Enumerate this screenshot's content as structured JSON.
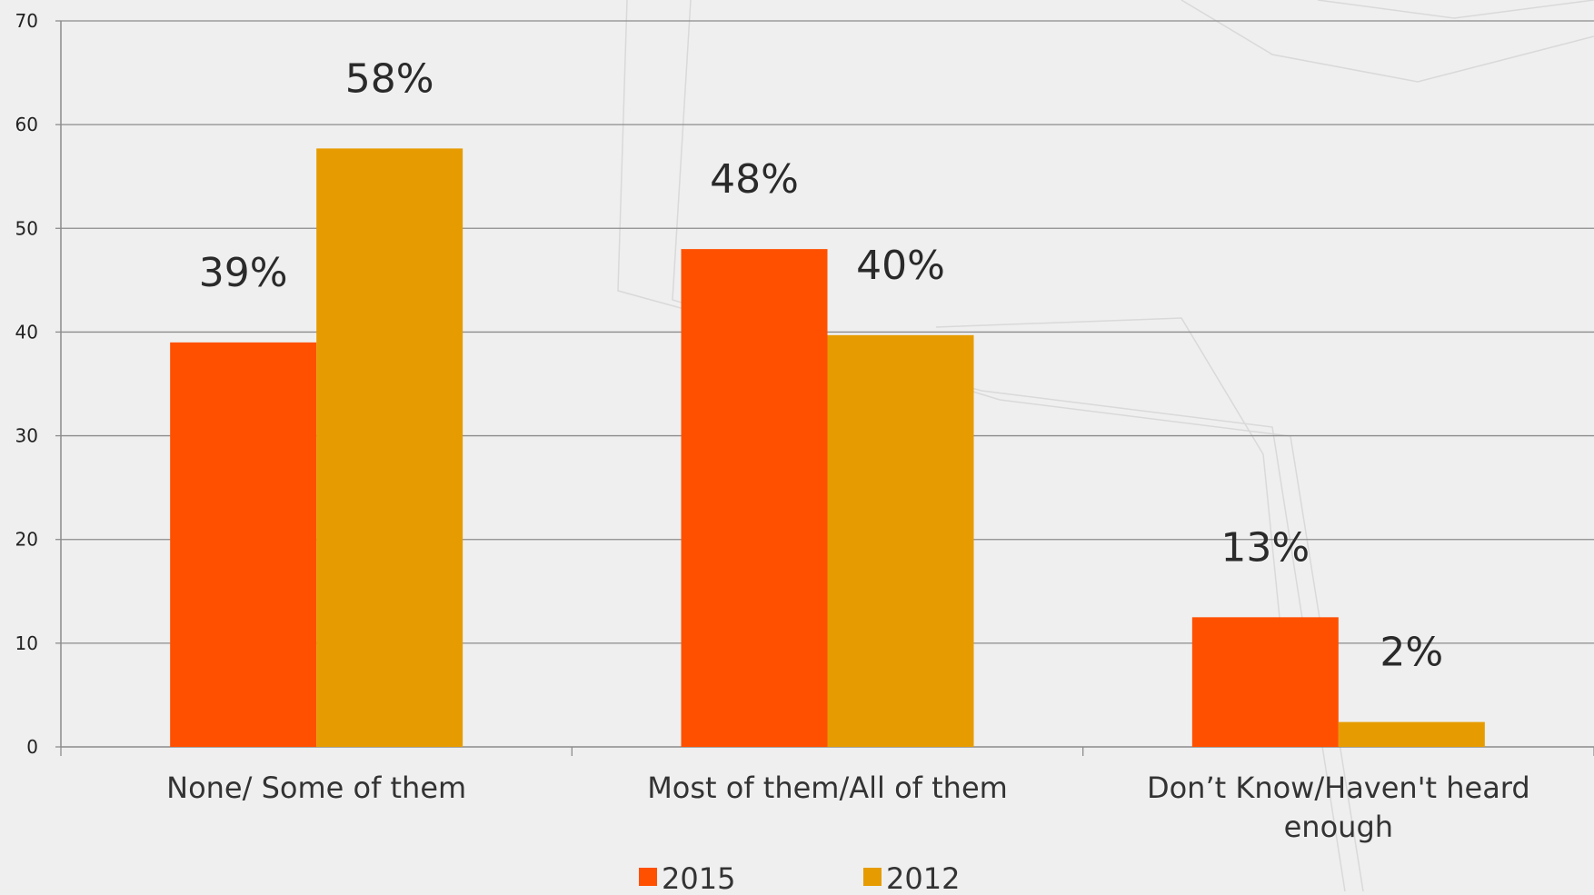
{
  "chart_data": {
    "type": "bar",
    "title": "",
    "xlabel": "",
    "ylabel": "",
    "ylim": [
      0,
      70
    ],
    "yticks": [
      0,
      10,
      20,
      30,
      40,
      50,
      60,
      70
    ],
    "grid": true,
    "legend_position": "bottom",
    "categories": [
      [
        "None/ Some of them"
      ],
      [
        "Most of them/All of them"
      ],
      [
        "Don’t Know/Haven't heard",
        "enough"
      ]
    ],
    "series": [
      {
        "name": "2015",
        "color": "#ff5000",
        "values": [
          39,
          48,
          12.5
        ],
        "labels": [
          "39%",
          "48%",
          "13%"
        ]
      },
      {
        "name": "2012",
        "color": "#e69c00",
        "values": [
          57.7,
          39.7,
          2.4
        ],
        "labels": [
          "58%",
          "40%",
          "2%"
        ]
      }
    ]
  }
}
